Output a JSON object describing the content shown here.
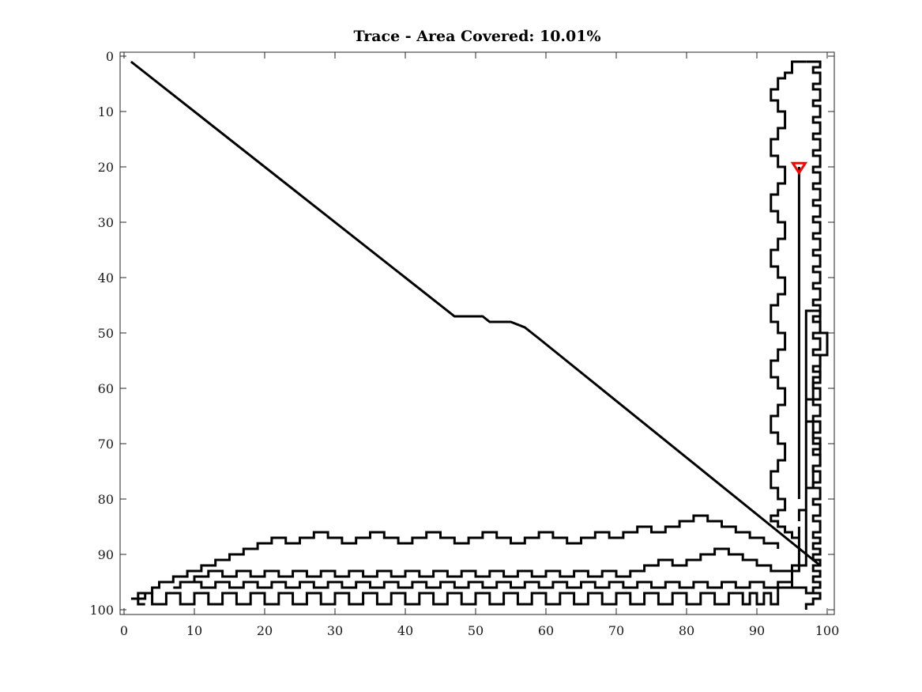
{
  "chart_data": {
    "type": "line",
    "title": "Trace - Area Covered: 10.01%",
    "xlabel": "",
    "ylabel": "",
    "xlim": [
      0,
      100
    ],
    "ylim": [
      0,
      100
    ],
    "y_reversed": true,
    "grid": false,
    "xticks": [
      0,
      10,
      20,
      30,
      40,
      50,
      60,
      70,
      80,
      90,
      100
    ],
    "yticks": [
      0,
      10,
      20,
      30,
      40,
      50,
      60,
      70,
      80,
      90,
      100
    ],
    "colors": {
      "trace": "#000000",
      "marker": "#ff0000"
    },
    "series": [
      {
        "style": "trace",
        "x": [
          1,
          47,
          51,
          52,
          55,
          57,
          58,
          59,
          99
        ],
        "y": [
          1,
          47,
          47,
          48,
          48,
          49,
          50,
          51,
          92
        ]
      },
      {
        "style": "trace",
        "x": [
          96,
          96,
          97,
          97,
          98,
          98,
          99,
          99,
          98,
          98,
          97,
          97,
          98,
          98,
          99,
          99,
          100,
          100,
          99,
          99,
          97,
          97,
          95,
          95,
          93,
          93,
          92,
          92,
          91,
          91,
          90,
          90,
          89,
          89,
          88,
          88,
          86,
          86,
          84,
          84,
          82,
          82,
          80,
          80,
          78,
          78,
          76,
          76,
          74,
          74,
          72,
          72,
          70,
          70,
          68,
          68,
          66,
          66,
          64,
          64,
          62,
          62,
          60,
          60,
          58,
          58,
          56,
          56,
          54,
          54,
          52,
          52,
          50,
          50,
          48,
          48,
          46,
          46,
          44,
          44,
          42,
          42,
          40,
          40,
          38,
          38,
          36,
          36,
          34,
          34,
          32,
          32,
          30,
          30,
          28,
          28,
          26,
          26,
          24,
          24,
          22,
          22,
          20,
          20,
          18,
          18,
          16,
          16,
          14,
          14,
          12,
          12,
          10,
          10,
          8,
          8,
          6,
          6,
          4,
          4,
          2,
          2
        ],
        "y": [
          84,
          82,
          82,
          78,
          78,
          74,
          74,
          70,
          70,
          66,
          66,
          62,
          62,
          58,
          58,
          54,
          54,
          50,
          50,
          46,
          46,
          92,
          92,
          96,
          96,
          99,
          99,
          97,
          97,
          99,
          99,
          97,
          97,
          99,
          99,
          97,
          97,
          99,
          99,
          97,
          97,
          99,
          99,
          97,
          97,
          99,
          99,
          97,
          97,
          99,
          99,
          97,
          97,
          99,
          99,
          97,
          97,
          99,
          99,
          97,
          97,
          99,
          99,
          97,
          97,
          99,
          99,
          97,
          97,
          99,
          99,
          97,
          97,
          99,
          99,
          97,
          97,
          99,
          99,
          97,
          97,
          99,
          99,
          97,
          97,
          99,
          99,
          97,
          97,
          99,
          99,
          97,
          97,
          99,
          99,
          97,
          97,
          99,
          99,
          97,
          97,
          99,
          99,
          97,
          97,
          99,
          99,
          97,
          97,
          99,
          99,
          97,
          97,
          99,
          99,
          97,
          97,
          99,
          99,
          97,
          97,
          98
        ]
      },
      {
        "style": "trace",
        "x": [
          2,
          3,
          3,
          4,
          4,
          5,
          5,
          7,
          7,
          9,
          9,
          11,
          11,
          13,
          13,
          15,
          15,
          17,
          17,
          19,
          19,
          21,
          21,
          23,
          23,
          25,
          25,
          27,
          27,
          29,
          29,
          31,
          31,
          33,
          33,
          35,
          35,
          37,
          37,
          39,
          39,
          41,
          41,
          43,
          43,
          45,
          45,
          47,
          47,
          49,
          49,
          51,
          51,
          53,
          53,
          55,
          55,
          57,
          57,
          59,
          59,
          61,
          61,
          63,
          63,
          65,
          65,
          67,
          67,
          69,
          69,
          71,
          71,
          73,
          73,
          75,
          75,
          77,
          77,
          79,
          79,
          81,
          81,
          83,
          83,
          85,
          85,
          87,
          87,
          89,
          89,
          91,
          91,
          93,
          93
        ],
        "y": [
          98,
          98,
          97,
          97,
          96,
          96,
          95,
          95,
          94,
          94,
          93,
          93,
          92,
          92,
          91,
          91,
          90,
          90,
          89,
          89,
          88,
          88,
          87,
          87,
          88,
          88,
          87,
          87,
          86,
          86,
          87,
          87,
          88,
          88,
          87,
          87,
          86,
          86,
          87,
          87,
          88,
          88,
          87,
          87,
          86,
          86,
          87,
          87,
          88,
          88,
          87,
          87,
          86,
          86,
          87,
          87,
          88,
          88,
          87,
          87,
          86,
          86,
          87,
          87,
          88,
          88,
          87,
          87,
          86,
          86,
          87,
          87,
          86,
          86,
          85,
          85,
          86,
          86,
          85,
          85,
          84,
          84,
          83,
          83,
          84,
          84,
          85,
          85,
          86,
          86,
          87,
          87,
          88,
          88,
          89
        ]
      },
      {
        "style": "trace",
        "x": [
          96,
          96,
          92,
          92,
          90,
          90,
          88,
          88,
          86,
          86,
          84,
          84,
          82,
          82,
          80,
          80,
          78,
          78,
          76,
          76,
          74,
          74,
          72,
          72,
          70,
          70,
          68,
          68,
          66,
          66,
          64,
          64,
          62,
          62,
          60,
          60,
          58,
          58,
          56,
          56,
          54,
          54,
          52,
          52,
          50,
          50,
          48,
          48,
          46,
          46,
          44,
          44,
          42,
          42,
          40,
          40,
          38,
          38,
          36,
          36,
          34,
          34,
          32,
          32,
          30,
          30,
          28,
          28,
          26,
          26,
          24,
          24,
          22,
          22,
          20,
          20,
          18,
          18,
          16,
          16,
          14,
          14,
          12,
          12,
          10,
          10,
          8,
          8,
          7
        ],
        "y": [
          85,
          93,
          93,
          92,
          92,
          91,
          91,
          90,
          90,
          89,
          89,
          90,
          90,
          91,
          91,
          92,
          92,
          91,
          91,
          92,
          92,
          93,
          93,
          94,
          94,
          93,
          93,
          94,
          94,
          93,
          93,
          94,
          94,
          93,
          93,
          94,
          94,
          93,
          93,
          94,
          94,
          93,
          93,
          94,
          94,
          93,
          93,
          94,
          94,
          93,
          93,
          94,
          94,
          93,
          93,
          94,
          94,
          93,
          93,
          94,
          94,
          93,
          93,
          94,
          94,
          93,
          93,
          94,
          94,
          93,
          93,
          94,
          94,
          93,
          93,
          94,
          94,
          93,
          93,
          94,
          94,
          93,
          93,
          94,
          94,
          95,
          95,
          96,
          96
        ]
      },
      {
        "style": "trace",
        "x": [
          9,
          11,
          11,
          13,
          13,
          15,
          15,
          17,
          17,
          19,
          19,
          21,
          21,
          23,
          23,
          25,
          25,
          27,
          27,
          29,
          29,
          31,
          31,
          33,
          33,
          35,
          35,
          37,
          37,
          39,
          39,
          41,
          41,
          43,
          43,
          45,
          45,
          47,
          47,
          49,
          49,
          51,
          51,
          53,
          53,
          55,
          55,
          57,
          57,
          59,
          59,
          61,
          61,
          63,
          63,
          65,
          65,
          67,
          67,
          69,
          69,
          71,
          71,
          73,
          73,
          75,
          75,
          77,
          77,
          79,
          79,
          81,
          81,
          83,
          83,
          85,
          85,
          87,
          87,
          89,
          89,
          91,
          91,
          93,
          93,
          95,
          95,
          97,
          97,
          99
        ],
        "y": [
          95,
          95,
          96,
          96,
          95,
          95,
          96,
          96,
          95,
          95,
          96,
          96,
          95,
          95,
          96,
          96,
          95,
          95,
          96,
          96,
          95,
          95,
          96,
          96,
          95,
          95,
          96,
          96,
          95,
          95,
          96,
          96,
          95,
          95,
          96,
          96,
          95,
          95,
          96,
          96,
          95,
          95,
          96,
          96,
          95,
          95,
          96,
          96,
          95,
          95,
          96,
          96,
          95,
          95,
          96,
          96,
          95,
          95,
          96,
          96,
          95,
          95,
          96,
          96,
          95,
          95,
          96,
          96,
          95,
          95,
          96,
          96,
          95,
          95,
          96,
          96,
          95,
          95,
          96,
          96,
          95,
          95,
          96,
          96,
          95,
          95,
          96,
          96,
          97,
          97
        ]
      },
      {
        "style": "trace",
        "x": [
          97,
          99,
          99,
          98,
          98,
          99,
          99,
          98,
          98,
          99,
          99,
          98,
          98,
          99,
          99,
          98,
          98,
          99,
          99,
          98,
          98,
          99,
          99,
          98,
          98,
          99,
          99,
          98,
          98,
          99,
          99,
          98,
          98,
          99,
          99,
          98,
          98,
          99,
          99,
          98,
          98,
          99,
          99,
          98,
          98,
          99,
          99,
          98,
          98,
          99,
          99,
          98,
          98,
          99,
          99,
          98,
          98,
          99,
          99,
          98,
          98,
          99,
          99,
          98,
          98,
          99,
          99,
          98,
          98,
          99,
          99,
          98,
          98,
          99,
          99,
          98,
          98,
          99,
          99,
          98,
          98,
          99,
          99,
          98,
          98,
          99,
          99,
          98,
          98,
          99,
          99,
          98,
          98,
          99,
          99,
          98,
          98,
          99,
          99,
          98,
          98,
          99,
          99,
          98,
          98,
          99,
          99,
          98,
          98,
          99,
          99,
          98,
          98,
          99,
          99,
          98,
          98,
          99,
          99,
          98,
          98,
          99,
          99,
          98,
          98,
          99,
          99,
          98,
          98,
          99,
          99,
          98,
          98,
          99,
          99,
          98,
          98,
          99,
          99,
          98,
          98,
          97,
          97
        ],
        "y": [
          1,
          1,
          2,
          2,
          3,
          3,
          5,
          5,
          6,
          6,
          8,
          8,
          9,
          9,
          11,
          11,
          12,
          12,
          14,
          14,
          15,
          15,
          17,
          17,
          18,
          18,
          20,
          20,
          21,
          21,
          23,
          23,
          24,
          24,
          26,
          26,
          27,
          27,
          29,
          29,
          30,
          30,
          32,
          32,
          33,
          33,
          35,
          35,
          36,
          36,
          38,
          38,
          39,
          39,
          41,
          41,
          42,
          42,
          44,
          44,
          45,
          45,
          47,
          47,
          48,
          48,
          50,
          50,
          51,
          51,
          53,
          53,
          54,
          54,
          56,
          56,
          57,
          57,
          59,
          59,
          60,
          60,
          62,
          62,
          63,
          63,
          65,
          65,
          66,
          66,
          68,
          68,
          69,
          69,
          71,
          71,
          72,
          72,
          74,
          74,
          75,
          75,
          77,
          77,
          78,
          78,
          80,
          80,
          81,
          81,
          83,
          83,
          84,
          84,
          86,
          86,
          87,
          87,
          88,
          88,
          89,
          89,
          90,
          90,
          91,
          91,
          92,
          92,
          93,
          93,
          94,
          94,
          95,
          95,
          96,
          96,
          97,
          97,
          98,
          98,
          99,
          99,
          100
        ]
      },
      {
        "style": "trace",
        "x": [
          97,
          95,
          95,
          94,
          94,
          93,
          93,
          92,
          92,
          93,
          93,
          94,
          94,
          93,
          93,
          92,
          92,
          93,
          93,
          94,
          94,
          93,
          93,
          92,
          92,
          93,
          93,
          94,
          94,
          93,
          93,
          92,
          92,
          93,
          93,
          94,
          94,
          93,
          93,
          92,
          92,
          93,
          93,
          94,
          94,
          93,
          93,
          92,
          92,
          93,
          93,
          94,
          94,
          93,
          93,
          92,
          92,
          93,
          93,
          94,
          94,
          93,
          93,
          92,
          92,
          93,
          93,
          94,
          94,
          93,
          93,
          92,
          92,
          93,
          93,
          94,
          94,
          95,
          95,
          96
        ],
        "y": [
          1,
          1,
          3,
          3,
          4,
          4,
          6,
          6,
          8,
          8,
          10,
          10,
          13,
          13,
          15,
          15,
          18,
          18,
          20,
          20,
          23,
          23,
          25,
          25,
          28,
          28,
          30,
          30,
          33,
          33,
          35,
          35,
          38,
          38,
          40,
          40,
          43,
          43,
          45,
          45,
          48,
          48,
          50,
          50,
          53,
          53,
          55,
          55,
          58,
          58,
          60,
          60,
          63,
          63,
          65,
          65,
          68,
          68,
          70,
          70,
          73,
          73,
          75,
          75,
          78,
          78,
          80,
          80,
          82,
          82,
          83,
          83,
          84,
          84,
          85,
          85,
          86,
          86,
          87,
          87
        ]
      },
      {
        "style": "trace",
        "x": [
          96,
          96
        ],
        "y": [
          20,
          80
        ]
      },
      {
        "style": "trace",
        "x": [
          1,
          2,
          2,
          3
        ],
        "y": [
          98,
          98,
          99,
          99
        ]
      }
    ],
    "markers": [
      {
        "shape": "triangle-down",
        "x": 96,
        "y": 20
      }
    ]
  }
}
